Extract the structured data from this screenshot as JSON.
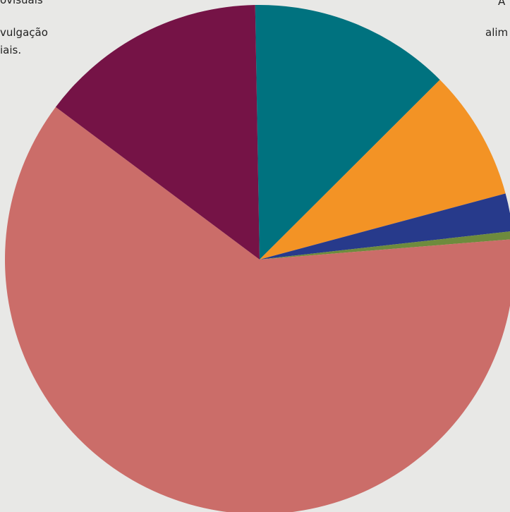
{
  "chart_data": {
    "type": "pie",
    "start_angle_deg": -1,
    "direction": "clockwise",
    "slices": [
      {
        "value": 12.8,
        "color": "#00727f"
      },
      {
        "value": 8.3,
        "color": "#f39325"
      },
      {
        "value": 2.4,
        "color": "#273a8b"
      },
      {
        "value": 0.5,
        "color": "#6e8b3d"
      },
      {
        "value": 61.5,
        "color": "#cb6d69"
      },
      {
        "value": 14.5,
        "color": "#751346"
      }
    ]
  },
  "visible_text": {
    "left_line1": "ovisuais",
    "left_line2": "vulgação",
    "left_line3": "iais.",
    "right_line1": "A",
    "right_line2": "alim"
  }
}
